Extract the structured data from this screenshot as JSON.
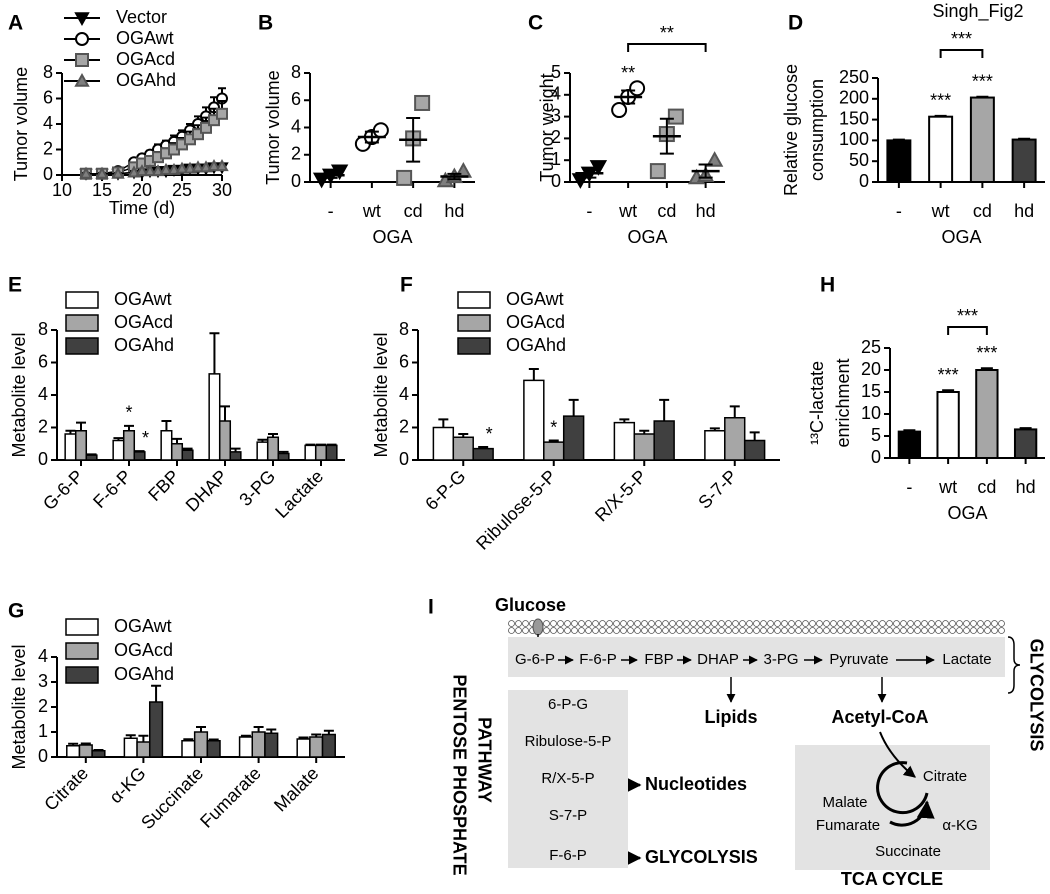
{
  "figure_label": "Singh_Fig2",
  "chart_data": [
    {
      "panel": "A",
      "type": "line",
      "xlabel": "Time (d)",
      "ylabel": "Tumor volume",
      "x": [
        13,
        15,
        17,
        19,
        20,
        21,
        22,
        23,
        24,
        25,
        26,
        27,
        28,
        29,
        30
      ],
      "xlim": [
        10,
        30
      ],
      "xticks": [
        10,
        15,
        20,
        25,
        30
      ],
      "ylim": [
        0,
        8
      ],
      "yticks": [
        0,
        2,
        4,
        6,
        8
      ],
      "series": [
        {
          "name": "Vector",
          "color": "#000000",
          "marker": "triangle-down",
          "values": [
            0.1,
            0.1,
            0.1,
            0.2,
            0.2,
            0.3,
            0.3,
            0.3,
            0.4,
            0.4,
            0.5,
            0.5,
            0.5,
            0.6,
            0.6
          ],
          "errors": [
            0.05,
            0.05,
            0.05,
            0.1,
            0.1,
            0.1,
            0.1,
            0.1,
            0.1,
            0.1,
            0.15,
            0.15,
            0.15,
            0.2,
            0.2
          ]
        },
        {
          "name": "OGAwt",
          "color": "#ffffff",
          "marker": "circle",
          "values": [
            0.1,
            0.1,
            0.3,
            1.0,
            1.3,
            1.6,
            2.0,
            2.3,
            2.6,
            3.0,
            3.5,
            4.0,
            4.6,
            5.3,
            6.0
          ],
          "errors": [
            0.05,
            0.05,
            0.1,
            0.2,
            0.3,
            0.3,
            0.4,
            0.4,
            0.5,
            0.5,
            0.5,
            0.6,
            0.7,
            0.8,
            0.8
          ]
        },
        {
          "name": "OGAcd",
          "color": "#a6a6a6",
          "marker": "square",
          "values": [
            0.1,
            0.1,
            0.2,
            0.6,
            0.9,
            1.1,
            1.4,
            1.7,
            2.0,
            2.4,
            2.8,
            3.2,
            3.7,
            4.3,
            4.8
          ],
          "errors": [
            0.05,
            0.05,
            0.1,
            0.2,
            0.3,
            0.3,
            0.4,
            0.4,
            0.5,
            0.5,
            0.6,
            0.7,
            0.8,
            0.9,
            1.0
          ]
        },
        {
          "name": "OGAhd",
          "color": "#7f7f7f",
          "marker": "triangle-up",
          "values": [
            0.1,
            0.1,
            0.1,
            0.2,
            0.3,
            0.3,
            0.3,
            0.4,
            0.4,
            0.5,
            0.5,
            0.6,
            0.6,
            0.7,
            0.7
          ],
          "errors": [
            0.05,
            0.05,
            0.05,
            0.1,
            0.1,
            0.1,
            0.1,
            0.1,
            0.15,
            0.15,
            0.15,
            0.2,
            0.2,
            0.2,
            0.2
          ]
        }
      ]
    },
    {
      "panel": "B",
      "type": "dot",
      "ylabel": "Tumor volume",
      "xlabel": "OGA",
      "categories": [
        "-",
        "wt",
        "cd",
        "hd"
      ],
      "colors": [
        "#000000",
        "#ffffff",
        "#a6a6a6",
        "#7f7f7f"
      ],
      "markers": [
        "triangle-down",
        "circle",
        "square",
        "triangle-up"
      ],
      "points": [
        [
          0.2,
          0.5,
          0.8
        ],
        [
          2.8,
          3.3,
          3.8
        ],
        [
          0.3,
          3.2,
          5.8
        ],
        [
          0.1,
          0.4,
          0.8
        ]
      ],
      "means": [
        0.5,
        3.3,
        3.1,
        0.4
      ],
      "errors": [
        0.2,
        0.4,
        1.6,
        0.2
      ],
      "ylim": [
        0,
        8
      ],
      "yticks": [
        0,
        2,
        4,
        6,
        8
      ]
    },
    {
      "panel": "C",
      "type": "dot",
      "ylabel": "Tumor weight",
      "xlabel": "OGA",
      "categories": [
        "-",
        "wt",
        "cd",
        "hd"
      ],
      "colors": [
        "#000000",
        "#ffffff",
        "#a6a6a6",
        "#7f7f7f"
      ],
      "markers": [
        "triangle-down",
        "circle",
        "square",
        "triangle-up"
      ],
      "points": [
        [
          0.1,
          0.4,
          0.7
        ],
        [
          3.3,
          3.9,
          4.3
        ],
        [
          0.5,
          2.2,
          3.0
        ],
        [
          0.2,
          0.3,
          1.0
        ]
      ],
      "means": [
        0.4,
        3.9,
        2.1,
        0.5
      ],
      "errors": [
        0.2,
        0.3,
        0.8,
        0.3
      ],
      "stars": [
        null,
        "**",
        null,
        null
      ],
      "bracket": "**",
      "ylim": [
        0,
        5
      ],
      "yticks": [
        0,
        1,
        2,
        3,
        4,
        5
      ]
    },
    {
      "panel": "D",
      "type": "bar",
      "ylabel": [
        "Relative glucose",
        "consumption"
      ],
      "xlabel": "OGA",
      "categories": [
        "-",
        "wt",
        "cd",
        "hd"
      ],
      "colors": [
        "#000000",
        "#ffffff",
        "#a6a6a6",
        "#404040"
      ],
      "values": [
        100,
        157,
        203,
        102
      ],
      "errors": [
        2,
        2,
        2,
        2
      ],
      "stars": [
        null,
        "***",
        "***",
        null
      ],
      "bracket": "***",
      "ylim": [
        0,
        250
      ],
      "yticks": [
        0,
        50,
        100,
        150,
        200,
        250
      ]
    },
    {
      "panel": "E",
      "type": "grouped_bar",
      "ylabel": "Metabolite level",
      "categories": [
        "G-6-P",
        "F-6-P",
        "FBP",
        "DHAP",
        "3-PG",
        "Lactate"
      ],
      "ylim": [
        0,
        8
      ],
      "yticks": [
        0,
        2,
        4,
        6,
        8
      ],
      "series": [
        {
          "name": "OGAwt",
          "color": "#ffffff",
          "values": [
            1.6,
            1.2,
            1.8,
            5.3,
            1.1,
            0.9
          ],
          "errors": [
            0.2,
            0.15,
            0.6,
            2.5,
            0.15,
            0.05
          ],
          "stars": [
            null,
            null,
            null,
            null,
            null,
            null
          ]
        },
        {
          "name": "OGAcd",
          "color": "#a6a6a6",
          "values": [
            1.8,
            1.8,
            1.0,
            2.4,
            1.4,
            0.9
          ],
          "errors": [
            0.5,
            0.3,
            0.3,
            0.9,
            0.2,
            0.05
          ],
          "stars": [
            null,
            "*",
            null,
            null,
            null,
            null
          ]
        },
        {
          "name": "OGAhd",
          "color": "#404040",
          "values": [
            0.3,
            0.5,
            0.6,
            0.5,
            0.4,
            0.9
          ],
          "errors": [
            0.05,
            0.05,
            0.1,
            0.2,
            0.1,
            0.05
          ],
          "stars": [
            null,
            "*",
            null,
            null,
            null,
            null
          ]
        }
      ]
    },
    {
      "panel": "F",
      "type": "grouped_bar",
      "ylabel": "Metabolite level",
      "categories": [
        "6-P-G",
        "Ribulose-5-P",
        "R/X-5-P",
        "S-7-P"
      ],
      "ylim": [
        0,
        8
      ],
      "yticks": [
        0,
        2,
        4,
        6,
        8
      ],
      "series": [
        {
          "name": "OGAwt",
          "color": "#ffffff",
          "values": [
            2.0,
            4.9,
            2.3,
            1.8
          ],
          "errors": [
            0.5,
            0.7,
            0.2,
            0.15
          ],
          "stars": [
            null,
            null,
            null,
            null
          ]
        },
        {
          "name": "OGAcd",
          "color": "#a6a6a6",
          "values": [
            1.4,
            1.1,
            1.6,
            2.6
          ],
          "errors": [
            0.2,
            0.1,
            0.2,
            0.7
          ],
          "stars": [
            null,
            "*",
            null,
            null
          ]
        },
        {
          "name": "OGAhd",
          "color": "#404040",
          "values": [
            0.7,
            2.7,
            2.4,
            1.2
          ],
          "errors": [
            0.1,
            1.0,
            1.3,
            0.5
          ],
          "stars": [
            "*",
            null,
            null,
            null
          ]
        }
      ]
    },
    {
      "panel": "G",
      "type": "grouped_bar",
      "ylabel": "Metabolite level",
      "categories": [
        "Citrate",
        "α-KG",
        "Succinate",
        "Fumarate",
        "Malate"
      ],
      "ylim": [
        0,
        4
      ],
      "yticks": [
        0,
        1,
        2,
        3,
        4
      ],
      "series": [
        {
          "name": "OGAwt",
          "color": "#ffffff",
          "values": [
            0.45,
            0.75,
            0.65,
            0.8,
            0.72
          ],
          "errors": [
            0.08,
            0.12,
            0.06,
            0.05,
            0.06
          ]
        },
        {
          "name": "OGAcd",
          "color": "#a6a6a6",
          "values": [
            0.48,
            0.6,
            1.0,
            1.0,
            0.8
          ],
          "errors": [
            0.06,
            0.25,
            0.2,
            0.2,
            0.1
          ]
        },
        {
          "name": "OGAhd",
          "color": "#404040",
          "values": [
            0.25,
            2.2,
            0.65,
            0.95,
            0.9
          ],
          "errors": [
            0.03,
            0.65,
            0.05,
            0.15,
            0.15
          ]
        }
      ]
    },
    {
      "panel": "H",
      "type": "bar",
      "ylabel": [
        "¹³C-lactate",
        "enrichment"
      ],
      "xlabel": "OGA",
      "categories": [
        "-",
        "wt",
        "cd",
        "hd"
      ],
      "colors": [
        "#000000",
        "#ffffff",
        "#a6a6a6",
        "#404040"
      ],
      "values": [
        6,
        15,
        20,
        6.5
      ],
      "errors": [
        0.3,
        0.4,
        0.4,
        0.3
      ],
      "stars": [
        null,
        "***",
        "***",
        null
      ],
      "bracket": "***",
      "ylim": [
        0,
        25
      ],
      "yticks": [
        0,
        5,
        10,
        15,
        20,
        25
      ]
    }
  ],
  "diagram": {
    "label": "I",
    "glucose": "Glucose",
    "glycolysis": [
      "G-6-P",
      "F-6-P",
      "FBP",
      "DHAP",
      "3-PG",
      "Pyruvate",
      "Lactate"
    ],
    "glycolysis_title": "GLYCOLYSIS",
    "ppp_title": [
      "PENTOSE PHOSPHATE",
      "PATHWAY"
    ],
    "ppp": [
      "6-P-G",
      "Ribulose-5-P",
      "R/X-5-P",
      "S-7-P",
      "F-6-P"
    ],
    "nucleotides": "Nucleotides",
    "ppp_glycolysis": "GLYCOLYSIS",
    "lipids": "Lipids",
    "acetyl_coa": "Acetyl-CoA",
    "tca": [
      "Citrate",
      "α-KG",
      "Succinate",
      "Fumarate",
      "Malate"
    ],
    "tca_title": "TCA CYCLE"
  }
}
